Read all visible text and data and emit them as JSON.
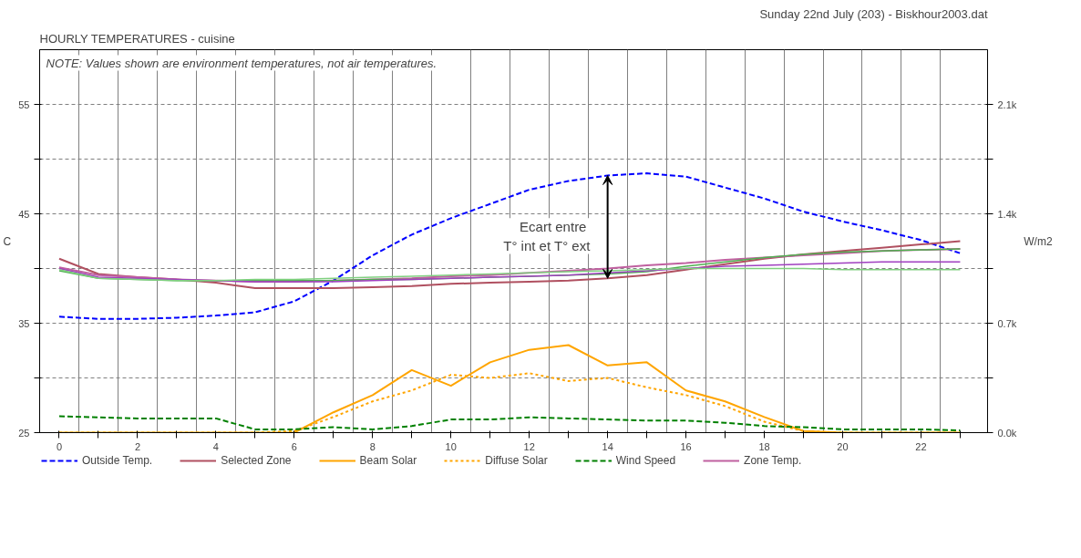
{
  "chart_data": {
    "type": "line",
    "title": "HOURLY TEMPERATURES - cuisine",
    "subtitle": "Sunday 22nd July (203) - Biskhour2003.dat",
    "ylabel": "C",
    "y2label": "W/m2",
    "annotations": [
      "NOTE: Values shown are environment temperatures, not air temperatures.",
      "Ecart  entre\nT° int et T° ext"
    ],
    "x": [
      0,
      1,
      2,
      3,
      4,
      5,
      6,
      7,
      8,
      9,
      10,
      11,
      12,
      13,
      14,
      15,
      16,
      17,
      18,
      19,
      20,
      21,
      22,
      23
    ],
    "series": [
      {
        "name": "Outside Temp.",
        "color": "#0000ff",
        "line_style": "dashed",
        "values": [
          35.6,
          35.4,
          35.4,
          35.5,
          35.7,
          36.0,
          37.0,
          38.9,
          41.2,
          43.1,
          44.6,
          45.9,
          47.2,
          48.0,
          48.5,
          48.7,
          48.4,
          47.4,
          46.4,
          45.2,
          44.3,
          43.5,
          42.6,
          41.4
        ]
      },
      {
        "name": "Selected Zone",
        "color": "#b05060",
        "line_style": "solid",
        "values": [
          40.9,
          39.5,
          39.2,
          39.0,
          38.7,
          38.2,
          38.2,
          38.2,
          38.3,
          38.4,
          38.6,
          38.7,
          38.8,
          38.9,
          39.1,
          39.4,
          39.9,
          40.4,
          40.9,
          41.3,
          41.6,
          41.9,
          42.2,
          42.5
        ]
      },
      {
        "name": "Beam Solar",
        "color": "#ffa500",
        "line_style": "solid",
        "axis": "y2",
        "values": [
          0,
          0,
          0,
          0,
          0,
          0,
          0,
          130,
          240,
          400,
          300,
          450,
          530,
          560,
          430,
          450,
          270,
          200,
          100,
          10,
          0,
          0,
          0,
          0
        ]
      },
      {
        "name": "Diffuse Solar",
        "color": "#ffa500",
        "line_style": "dotted",
        "axis": "y2",
        "values": [
          0,
          0,
          0,
          0,
          0,
          0,
          10,
          100,
          200,
          270,
          370,
          350,
          380,
          330,
          350,
          290,
          240,
          170,
          70,
          10,
          0,
          0,
          0,
          0
        ]
      },
      {
        "name": "Wind Speed",
        "color": "#008000",
        "line_style": "dashed",
        "values": [
          26.5,
          26.4,
          26.3,
          26.3,
          26.3,
          25.3,
          25.3,
          25.5,
          25.3,
          25.6,
          26.2,
          26.2,
          26.4,
          26.3,
          26.2,
          26.1,
          26.1,
          25.9,
          25.6,
          25.5,
          25.3,
          25.3,
          25.3,
          25.2
        ]
      },
      {
        "name": "Zone Temp.",
        "color": "#c060a0",
        "line_style": "solid",
        "values": [
          40.1,
          39.4,
          39.2,
          39.0,
          38.9,
          38.8,
          38.8,
          38.9,
          39.0,
          39.1,
          39.3,
          39.4,
          39.6,
          39.8,
          40.0,
          40.3,
          40.5,
          40.8,
          41.0,
          41.2,
          41.4,
          41.6,
          41.7,
          41.8
        ]
      },
      {
        "color": "#50b050",
        "line_style": "solid",
        "values": [
          39.8,
          39.1,
          39.0,
          38.9,
          38.9,
          38.9,
          38.9,
          38.9,
          39.0,
          39.0,
          39.1,
          39.2,
          39.3,
          39.4,
          39.5,
          39.7,
          40.2,
          40.6,
          41.0,
          41.3,
          41.5,
          41.6,
          41.7,
          41.8
        ]
      },
      {
        "color": "#a040c0",
        "line_style": "solid",
        "values": [
          40.0,
          39.2,
          39.1,
          39.0,
          38.9,
          38.8,
          38.8,
          38.8,
          38.9,
          39.0,
          39.1,
          39.2,
          39.3,
          39.4,
          39.6,
          39.8,
          40.0,
          40.2,
          40.3,
          40.4,
          40.5,
          40.6,
          40.6,
          40.6
        ]
      },
      {
        "color": "#80d080",
        "line_style": "solid",
        "values": [
          39.9,
          39.1,
          39.0,
          38.9,
          38.9,
          39.0,
          39.0,
          39.1,
          39.2,
          39.3,
          39.4,
          39.5,
          39.6,
          39.7,
          39.8,
          39.9,
          40.0,
          40.0,
          40.0,
          40.0,
          39.9,
          39.9,
          39.9,
          39.9
        ]
      }
    ],
    "xlim": [
      -0.5,
      23.7
    ],
    "xticks": [
      0,
      {
        "value": 1,
        "label": null
      },
      2,
      {
        "value": 3,
        "label": null
      },
      4,
      {
        "value": 5,
        "label": null
      },
      6,
      {
        "value": 7,
        "label": null
      },
      8,
      {
        "value": 9,
        "label": null
      },
      10,
      {
        "value": 11,
        "label": null
      },
      12,
      {
        "value": 13,
        "label": null
      },
      14,
      {
        "value": 15,
        "label": null
      },
      16,
      {
        "value": 17,
        "label": null
      },
      18,
      {
        "value": 19,
        "label": null
      },
      20,
      {
        "value": 21,
        "label": null
      },
      22,
      {
        "value": 23,
        "label": null
      }
    ],
    "ylim": [
      25,
      60
    ],
    "yticks": [
      25,
      {
        "value": 30,
        "label": null
      },
      35,
      {
        "value": 40,
        "label": null
      },
      45,
      {
        "value": 50,
        "label": null
      },
      55
    ],
    "y2lim": [
      0,
      2450
    ],
    "y2ticks": [
      {
        "value": 0,
        "label": "0.0k"
      },
      {
        "value": 350,
        "label": null
      },
      {
        "value": 700,
        "label": "0.7k"
      },
      {
        "value": 1050,
        "label": null
      },
      {
        "value": 1400,
        "label": "1.4k"
      },
      {
        "value": 1750,
        "label": null
      },
      {
        "value": 2100,
        "label": "2.1k"
      }
    ],
    "grid": true,
    "legend": "bottom",
    "marker": "none"
  }
}
